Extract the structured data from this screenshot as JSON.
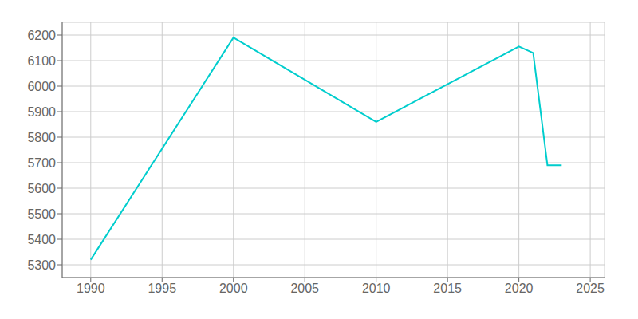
{
  "chart_data": {
    "type": "line",
    "x": [
      1990,
      2000,
      2010,
      2020,
      2021,
      2022,
      2023
    ],
    "values": [
      5320,
      6190,
      5860,
      6155,
      6130,
      5690,
      5690
    ],
    "color": "#00CDCD",
    "xlim": [
      1988,
      2026
    ],
    "ylim": [
      5250,
      6250
    ],
    "xticks": [
      1990,
      1995,
      2000,
      2005,
      2010,
      2015,
      2020,
      2025
    ],
    "yticks": [
      5300,
      5400,
      5500,
      5600,
      5700,
      5800,
      5900,
      6000,
      6100,
      6200
    ],
    "grid": true
  }
}
